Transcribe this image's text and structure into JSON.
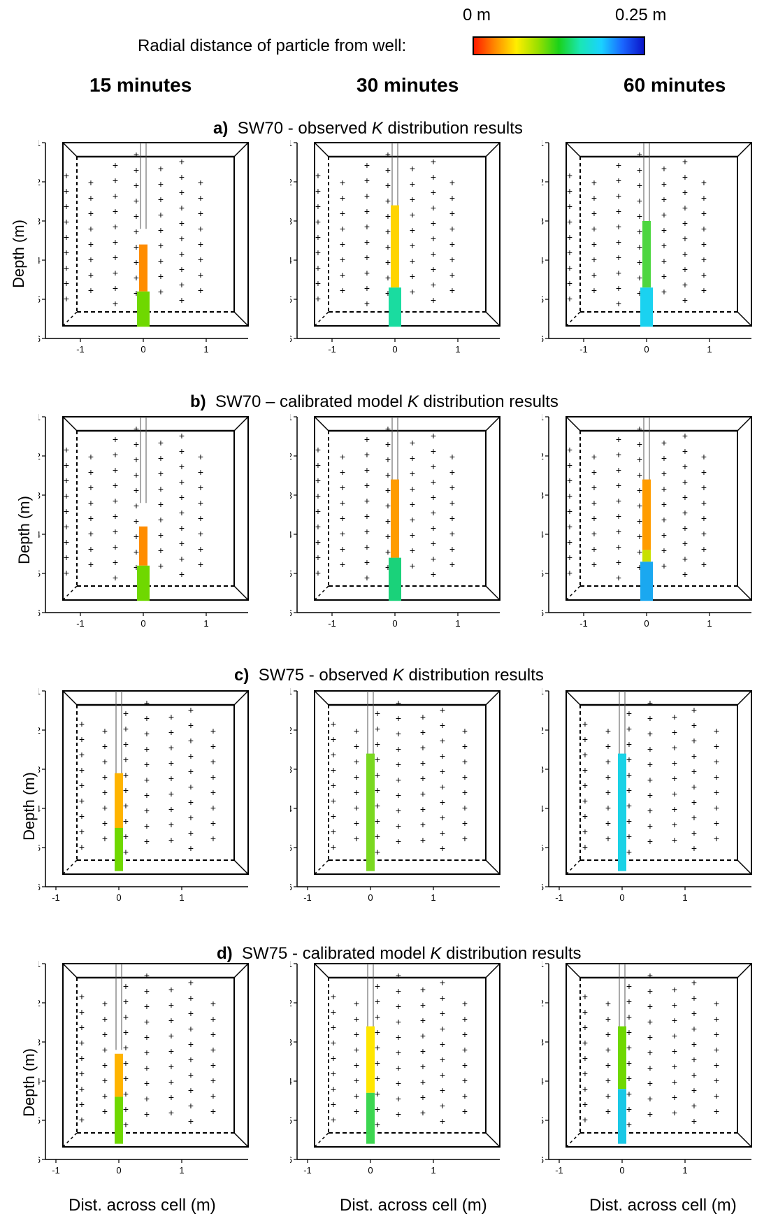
{
  "legend": {
    "title": "Radial distance of particle from well:",
    "min_label": "0 m",
    "max_label": "0.25 m",
    "colors": [
      "#ff1a00",
      "#ff8c00",
      "#ffee00",
      "#9be000",
      "#1ad21a",
      "#1ae6b4",
      "#1ad2ff",
      "#1a66ff",
      "#0a14c8"
    ]
  },
  "columns": [
    "15 minutes",
    "30 minutes",
    "60 minutes"
  ],
  "rows": [
    {
      "letter": "a)",
      "well": "SW70",
      "sep": " - observed ",
      "k": "K",
      "rest": " distribution results"
    },
    {
      "letter": "b)",
      "well": "SW70",
      "sep": " – calibrated model ",
      "k": "K",
      "rest": " distribution results"
    },
    {
      "letter": "c)",
      "well": "SW75",
      "sep": "  -  observed ",
      "k": "K",
      "rest": " distribution results"
    },
    {
      "letter": "d)",
      "well": "SW75",
      "sep": " - calibrated model ",
      "k": "K",
      "rest": " distribution results"
    }
  ],
  "axes": {
    "ylabel": "Depth (m)",
    "xlabel": "Dist. across cell (m)",
    "y_ticks": [
      "-1",
      "-2",
      "-3",
      "-4",
      "-5",
      "-6"
    ],
    "x_ticks": [
      "-1",
      "0",
      "1"
    ]
  },
  "chart_data": {
    "type": "scatter",
    "ylim": [
      -6,
      -1
    ],
    "xlim": [
      -1.5,
      1.5
    ],
    "panels": [
      {
        "row": "a",
        "col": "15 minutes",
        "segments": [
          {
            "top": -3.6,
            "bottom": -4.8,
            "color": "#ff8c00"
          },
          {
            "top": -4.8,
            "bottom": -5.7,
            "color": "#6fd800"
          }
        ]
      },
      {
        "row": "a",
        "col": "30 minutes",
        "segments": [
          {
            "top": -2.6,
            "bottom": -4.7,
            "color": "#ffd400"
          },
          {
            "top": -4.7,
            "bottom": -5.7,
            "color": "#1adca0"
          }
        ]
      },
      {
        "row": "a",
        "col": "60 minutes",
        "segments": [
          {
            "top": -3.0,
            "bottom": -4.7,
            "color": "#4dd640"
          },
          {
            "top": -4.7,
            "bottom": -5.7,
            "color": "#1ad2f0"
          }
        ]
      },
      {
        "row": "b",
        "col": "15 minutes",
        "segments": [
          {
            "top": -3.8,
            "bottom": -4.8,
            "color": "#ff8c00"
          },
          {
            "top": -4.8,
            "bottom": -5.7,
            "color": "#6fd800"
          }
        ]
      },
      {
        "row": "b",
        "col": "30 minutes",
        "segments": [
          {
            "top": -2.6,
            "bottom": -4.6,
            "color": "#ff9c00"
          },
          {
            "top": -4.6,
            "bottom": -5.7,
            "color": "#1ad27a"
          }
        ]
      },
      {
        "row": "b",
        "col": "60 minutes",
        "segments": [
          {
            "top": -2.6,
            "bottom": -4.4,
            "color": "#ff9c00"
          },
          {
            "top": -4.4,
            "bottom": -4.7,
            "color": "#c8e000"
          },
          {
            "top": -4.7,
            "bottom": -5.7,
            "color": "#1aa8f0"
          }
        ]
      },
      {
        "row": "c",
        "col": "15 minutes",
        "segments": [
          {
            "top": -3.1,
            "bottom": -4.5,
            "color": "#ffb400"
          },
          {
            "top": -4.5,
            "bottom": -5.6,
            "color": "#6fd800"
          }
        ]
      },
      {
        "row": "c",
        "col": "30 minutes",
        "segments": [
          {
            "top": -2.6,
            "bottom": -5.6,
            "color": "#7ad820"
          }
        ]
      },
      {
        "row": "c",
        "col": "60 minutes",
        "segments": [
          {
            "top": -2.6,
            "bottom": -5.6,
            "color": "#1ad2e6"
          }
        ]
      },
      {
        "row": "d",
        "col": "15 minutes",
        "segments": [
          {
            "top": -3.3,
            "bottom": -4.4,
            "color": "#ffb400"
          },
          {
            "top": -4.4,
            "bottom": -5.6,
            "color": "#6fd800"
          }
        ]
      },
      {
        "row": "d",
        "col": "30 minutes",
        "segments": [
          {
            "top": -2.6,
            "bottom": -4.3,
            "color": "#ffe600"
          },
          {
            "top": -4.3,
            "bottom": -5.6,
            "color": "#3cd650"
          }
        ]
      },
      {
        "row": "d",
        "col": "60 minutes",
        "segments": [
          {
            "top": -2.6,
            "bottom": -4.2,
            "color": "#6fd800"
          },
          {
            "top": -4.2,
            "bottom": -5.6,
            "color": "#1ac8e6"
          }
        ]
      }
    ]
  }
}
